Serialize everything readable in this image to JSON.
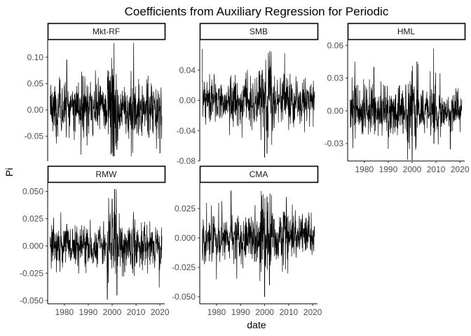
{
  "chart_data": {
    "type": "line",
    "title": "Coefficients from Auxiliary Regression for Periodic",
    "xlabel": "date",
    "ylabel": "Pi",
    "xlim": [
      1973,
      2022
    ],
    "x_ticks": [
      1980,
      1990,
      2000,
      2010,
      2020
    ],
    "x_tick_labels": [
      "1980",
      "1990",
      "2000",
      "2010",
      "2020"
    ],
    "grid": false,
    "facets": [
      {
        "name": "Mkt-RF",
        "ylim": [
          -0.097,
          0.133
        ],
        "y_ticks": [
          -0.05,
          0.0,
          0.05,
          0.1
        ],
        "y_tick_labels": [
          "-0.05",
          "0.00",
          "0.05",
          "0.10"
        ],
        "approx_range": [
          -0.088,
          0.127
        ],
        "spikes": [
          {
            "x": 1976,
            "y": 0.045
          },
          {
            "x": 1981,
            "y": 0.095
          },
          {
            "x": 1987,
            "y": -0.085
          },
          {
            "x": 1993,
            "y": 0.075
          },
          {
            "x": 2002,
            "y": -0.075
          },
          {
            "x": 2008,
            "y": -0.088
          },
          {
            "x": 2009,
            "y": 0.127
          },
          {
            "x": 2015,
            "y": 0.065
          },
          {
            "x": 2020,
            "y": -0.082
          }
        ]
      },
      {
        "name": "SMB",
        "ylim": [
          -0.08,
          0.08
        ],
        "y_ticks": [
          -0.08,
          -0.04,
          0.0,
          0.04
        ],
        "y_tick_labels": [
          "-0.08",
          "-0.04",
          "0.00",
          "0.04"
        ],
        "approx_range": [
          -0.075,
          0.068
        ],
        "spikes": [
          {
            "x": 1974,
            "y": 0.068
          },
          {
            "x": 1979,
            "y": 0.035
          },
          {
            "x": 1987,
            "y": -0.035
          },
          {
            "x": 1999,
            "y": 0.04
          },
          {
            "x": 2000,
            "y": -0.075
          },
          {
            "x": 2001,
            "y": -0.07
          },
          {
            "x": 2009,
            "y": 0.03
          }
        ]
      },
      {
        "name": "HML",
        "ylim": [
          -0.046,
          0.065
        ],
        "y_ticks": [
          -0.03,
          0.0,
          0.03,
          0.06
        ],
        "y_tick_labels": [
          "-0.03",
          "0.00",
          "0.03",
          "0.06"
        ],
        "approx_range": [
          -0.045,
          0.057
        ],
        "spikes": [
          {
            "x": 1976,
            "y": 0.045
          },
          {
            "x": 1984,
            "y": 0.04
          },
          {
            "x": 1990,
            "y": -0.035
          },
          {
            "x": 2000,
            "y": -0.045
          },
          {
            "x": 2002,
            "y": 0.045
          },
          {
            "x": 2009,
            "y": 0.057
          },
          {
            "x": 2016,
            "y": -0.035
          }
        ]
      },
      {
        "name": "RMW",
        "ylim": [
          -0.053,
          0.058
        ],
        "y_ticks": [
          -0.05,
          -0.025,
          0.0,
          0.025,
          0.05
        ],
        "y_tick_labels": [
          "-0.050",
          "-0.025",
          "0.000",
          "0.025",
          "0.050"
        ],
        "approx_range": [
          -0.049,
          0.052
        ],
        "spikes": [
          {
            "x": 1981,
            "y": 0.02
          },
          {
            "x": 1992,
            "y": -0.015
          },
          {
            "x": 1998,
            "y": -0.049
          },
          {
            "x": 2000,
            "y": 0.043
          },
          {
            "x": 2001,
            "y": 0.052
          },
          {
            "x": 2002,
            "y": -0.045
          },
          {
            "x": 2009,
            "y": 0.02
          }
        ]
      },
      {
        "name": "CMA",
        "ylim": [
          -0.056,
          0.047
        ],
        "y_ticks": [
          -0.05,
          -0.025,
          0.0,
          0.025
        ],
        "y_tick_labels": [
          "-0.050",
          "-0.025",
          "0.000",
          "0.025"
        ],
        "approx_range": [
          -0.05,
          0.04
        ],
        "spikes": [
          {
            "x": 1975,
            "y": -0.02
          },
          {
            "x": 1986,
            "y": 0.04
          },
          {
            "x": 1996,
            "y": 0.028
          },
          {
            "x": 2000,
            "y": -0.05
          },
          {
            "x": 2001,
            "y": 0.035
          },
          {
            "x": 2002,
            "y": -0.04
          },
          {
            "x": 2009,
            "y": 0.03
          }
        ]
      }
    ]
  }
}
